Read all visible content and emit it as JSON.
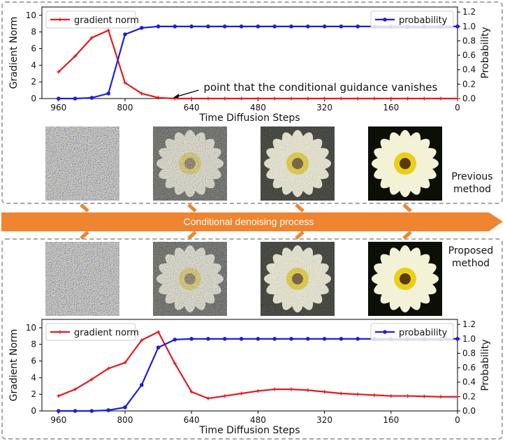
{
  "colors": {
    "gradient": "#e41a1c",
    "probability": "#1f1fd6",
    "band": "#ef8431",
    "band_text": "#ffffff",
    "dash": "#a8a8a8"
  },
  "labels": {
    "previous_line1": "Previous",
    "previous_line2": "method",
    "proposed_line1": "Proposed",
    "proposed_line2": "method",
    "band": "Conditional denoising process",
    "annotation": "point that the conditional guidance vanishes"
  },
  "chart_data": [
    {
      "type": "line",
      "name": "previous-method-chart",
      "xlabel": "Time Diffusion Steps",
      "ylabel": "Gradient Norm",
      "ylabel_right": "Probability",
      "xlim": [
        1000,
        0
      ],
      "ylim": [
        0,
        11
      ],
      "ylim_right": [
        0,
        1.27
      ],
      "x_ticks": [
        960,
        800,
        640,
        480,
        320,
        160,
        0
      ],
      "y_ticks": [
        0,
        2,
        4,
        6,
        8,
        10
      ],
      "y_ticks_right": [
        "0.0",
        "0.2",
        "0.4",
        "0.6",
        "0.8",
        "1.0",
        "1.2"
      ],
      "legend_left": "gradient norm",
      "legend_right": "probability",
      "annotation_xy": [
        690,
        0.0
      ],
      "series": [
        {
          "name": "gradient norm",
          "axis": "left",
          "x": [
            960,
            920,
            880,
            840,
            800,
            760,
            720,
            680,
            640,
            600,
            560,
            520,
            480,
            440,
            400,
            360,
            320,
            280,
            240,
            200,
            160,
            120,
            80,
            40,
            0
          ],
          "values": [
            3.2,
            5.1,
            7.3,
            8.2,
            1.9,
            0.6,
            0.1,
            0.0,
            0,
            0,
            0,
            0,
            0,
            0,
            0,
            0,
            0,
            0,
            0,
            0,
            0,
            0,
            0,
            0,
            0
          ]
        },
        {
          "name": "probability",
          "axis": "right",
          "x": [
            960,
            920,
            880,
            840,
            800,
            760,
            720,
            680,
            640,
            600,
            560,
            520,
            480,
            440,
            400,
            360,
            320,
            280,
            240,
            200,
            160,
            120,
            80,
            40,
            0
          ],
          "values": [
            0.0,
            0.0,
            0.01,
            0.07,
            0.89,
            0.98,
            1.0,
            1.0,
            1.0,
            1.0,
            1.0,
            1.0,
            1.0,
            1.0,
            1.0,
            1.0,
            1.0,
            1.0,
            1.0,
            1.0,
            1.0,
            1.0,
            1.0,
            1.0,
            1.0
          ]
        }
      ]
    },
    {
      "type": "line",
      "name": "proposed-method-chart",
      "xlabel": "Time Diffusion Steps",
      "ylabel": "Gradient Norm",
      "ylabel_right": "Probability",
      "xlim": [
        1000,
        0
      ],
      "ylim": [
        0,
        11
      ],
      "ylim_right": [
        0,
        1.27
      ],
      "x_ticks": [
        960,
        800,
        640,
        480,
        320,
        160,
        0
      ],
      "y_ticks": [
        0,
        2,
        4,
        6,
        8,
        10
      ],
      "y_ticks_right": [
        "0.0",
        "0.2",
        "0.4",
        "0.6",
        "0.8",
        "1.0",
        "1.2"
      ],
      "legend_left": "gradient norm",
      "legend_right": "probability",
      "series": [
        {
          "name": "gradient norm",
          "axis": "left",
          "x": [
            960,
            920,
            880,
            840,
            800,
            760,
            720,
            680,
            640,
            600,
            560,
            520,
            480,
            440,
            400,
            360,
            320,
            280,
            240,
            200,
            160,
            120,
            80,
            40,
            0
          ],
          "values": [
            1.8,
            2.6,
            3.8,
            5.1,
            5.8,
            8.5,
            9.5,
            5.7,
            2.3,
            1.5,
            1.8,
            2.1,
            2.4,
            2.6,
            2.6,
            2.5,
            2.3,
            2.1,
            2.0,
            1.9,
            1.8,
            1.8,
            1.75,
            1.7,
            1.7
          ]
        },
        {
          "name": "probability",
          "axis": "right",
          "x": [
            960,
            920,
            880,
            840,
            800,
            760,
            720,
            680,
            640,
            600,
            560,
            520,
            480,
            440,
            400,
            360,
            320,
            280,
            240,
            200,
            160,
            120,
            80,
            40,
            0
          ],
          "values": [
            0.0,
            0.0,
            0.0,
            0.01,
            0.05,
            0.36,
            0.88,
            0.99,
            1.0,
            1.0,
            1.0,
            1.0,
            1.0,
            1.0,
            1.0,
            1.0,
            1.0,
            1.0,
            1.0,
            1.0,
            1.0,
            1.0,
            1.0,
            1.0,
            1.0
          ]
        }
      ]
    }
  ],
  "images": {
    "top_row": [
      {
        "name": "noise-960",
        "noise": 1.0
      },
      {
        "name": "noise-800",
        "noise": 0.6
      },
      {
        "name": "noise-480",
        "noise": 0.35
      },
      {
        "name": "clean-0",
        "noise": 0.0
      }
    ],
    "bottom_row": [
      {
        "name": "noise-960",
        "noise": 1.0
      },
      {
        "name": "noise-800",
        "noise": 0.6
      },
      {
        "name": "noise-480",
        "noise": 0.35
      },
      {
        "name": "clean-0",
        "noise": 0.0
      }
    ]
  }
}
